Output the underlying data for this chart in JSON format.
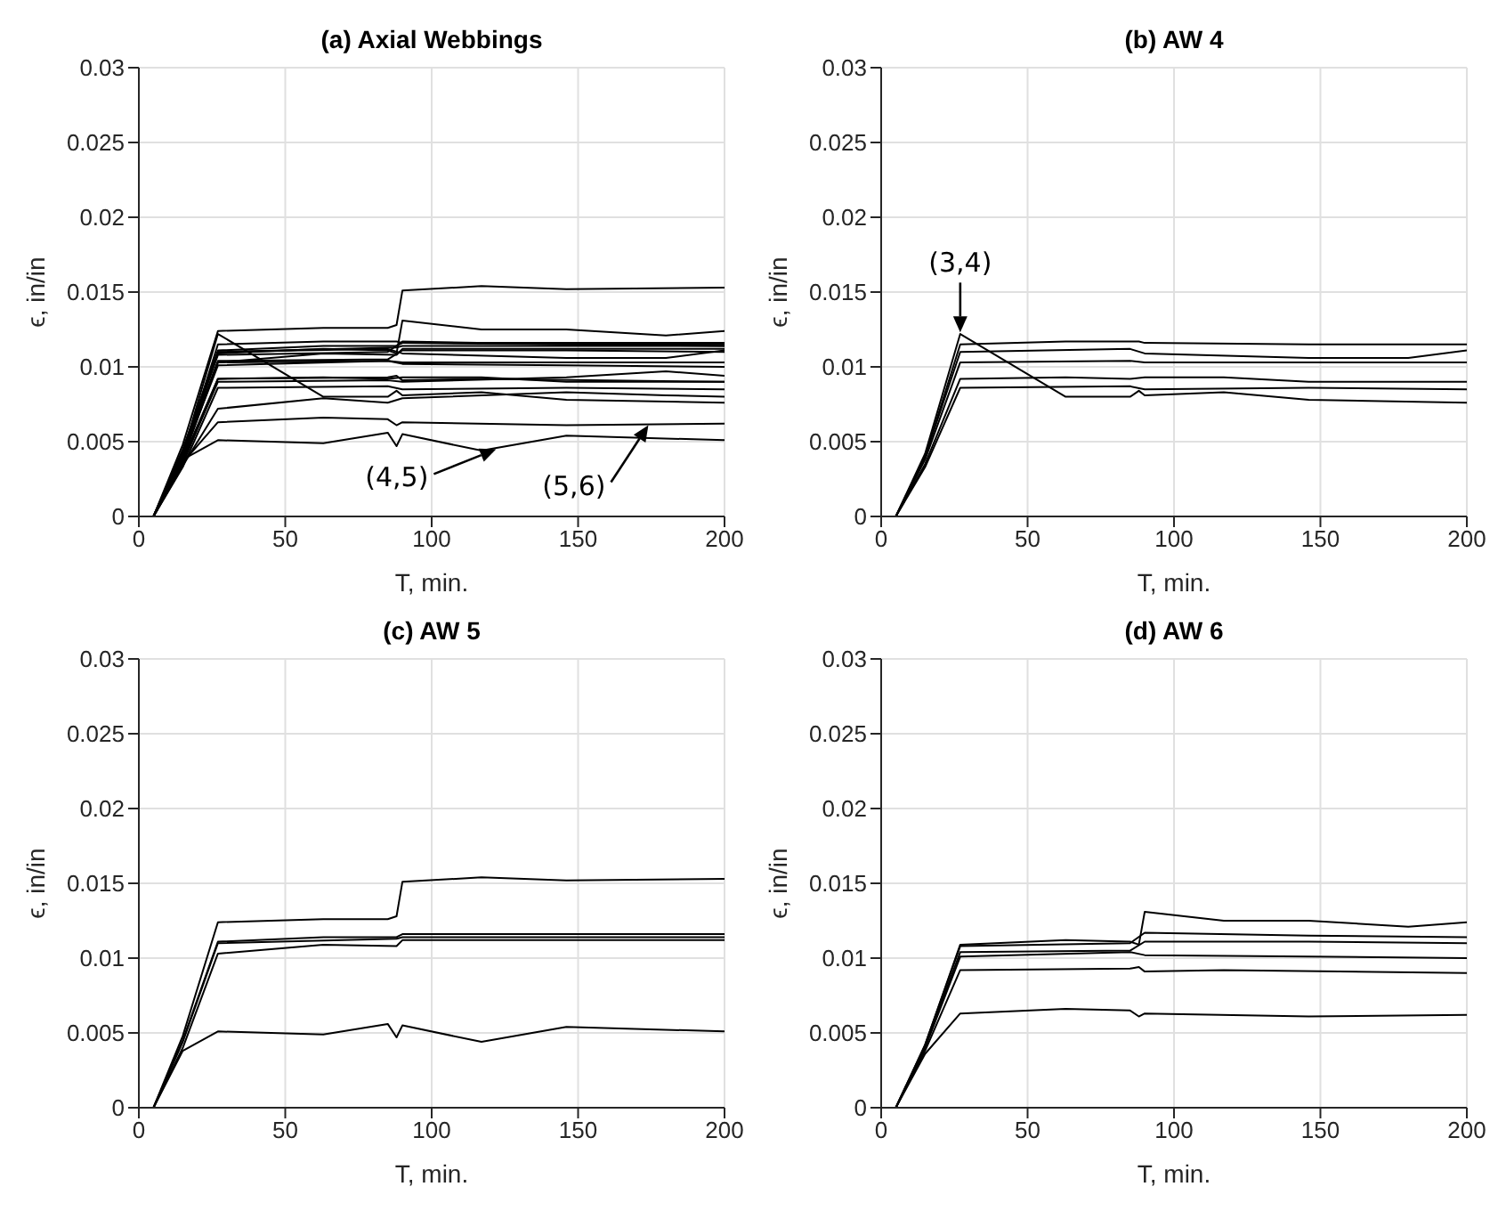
{
  "chart_data": [
    {
      "type": "line",
      "title": "(a) Axial Webbings",
      "xlabel": "T, min.",
      "ylabel": "ϵ, in/in",
      "xlim": [
        0,
        200
      ],
      "ylim": [
        0,
        0.03
      ],
      "xticks": [
        0,
        50,
        100,
        150,
        200
      ],
      "yticks": [
        0,
        0.005,
        0.01,
        0.015,
        0.02,
        0.025,
        0.03
      ],
      "grid": true,
      "annotations": [
        {
          "text": "(4,5)",
          "x": 122,
          "y": 0.0045
        },
        {
          "text": "(5,6)",
          "x": 174,
          "y": 0.0061
        }
      ],
      "series": [
        {
          "color": "#000000",
          "x": [
            5,
            15,
            27,
            63,
            88,
            90,
            146,
            200
          ],
          "values": [
            0,
            0.004,
            0.0115,
            0.0117,
            0.0117,
            0.0116,
            0.0115,
            0.0115
          ]
        },
        {
          "color": "#000000",
          "x": [
            5,
            15,
            27,
            85,
            90,
            146,
            180,
            200
          ],
          "values": [
            0,
            0.004,
            0.011,
            0.0112,
            0.0109,
            0.0106,
            0.0106,
            0.0111
          ]
        },
        {
          "color": "#000000",
          "x": [
            5,
            15,
            27,
            85,
            90,
            200
          ],
          "values": [
            0,
            0.0038,
            0.0103,
            0.0104,
            0.0103,
            0.0103
          ]
        },
        {
          "color": "#000000",
          "x": [
            5,
            15,
            27,
            63,
            85,
            88,
            90,
            117,
            146,
            200
          ],
          "values": [
            0,
            0.0042,
            0.0122,
            0.008,
            0.008,
            0.0084,
            0.0081,
            0.0083,
            0.0078,
            0.0076
          ]
        },
        {
          "color": "#000000",
          "x": [
            5,
            15,
            27,
            63,
            85,
            90,
            117,
            146,
            200
          ],
          "values": [
            0,
            0.0035,
            0.0092,
            0.0093,
            0.0092,
            0.0093,
            0.0093,
            0.009,
            0.009
          ]
        },
        {
          "color": "#000000",
          "x": [
            5,
            15,
            27,
            85,
            90,
            146,
            200
          ],
          "values": [
            0,
            0.0033,
            0.0086,
            0.0087,
            0.0085,
            0.0086,
            0.0085
          ]
        },
        {
          "color": "#000000",
          "x": [
            5,
            15,
            27,
            63,
            85,
            88,
            90,
            117,
            146,
            200
          ],
          "values": [
            0,
            0.0048,
            0.0124,
            0.0126,
            0.0126,
            0.0128,
            0.0151,
            0.0154,
            0.0152,
            0.0153
          ]
        },
        {
          "color": "#000000",
          "x": [
            5,
            15,
            27,
            63,
            88,
            90,
            200
          ],
          "values": [
            0,
            0.0045,
            0.0111,
            0.0114,
            0.0114,
            0.0116,
            0.0116
          ]
        },
        {
          "color": "#000000",
          "x": [
            5,
            15,
            27,
            88,
            90,
            200
          ],
          "values": [
            0,
            0.0044,
            0.011,
            0.0113,
            0.0114,
            0.0114
          ]
        },
        {
          "color": "#000000",
          "x": [
            5,
            15,
            27,
            63,
            88,
            90,
            200
          ],
          "values": [
            0,
            0.004,
            0.0103,
            0.0109,
            0.0108,
            0.0112,
            0.0112
          ]
        },
        {
          "color": "#000000",
          "x": [
            5,
            15,
            27,
            63,
            85,
            88,
            90,
            117,
            146,
            200
          ],
          "values": [
            0,
            0.0038,
            0.0051,
            0.0049,
            0.0056,
            0.0047,
            0.0055,
            0.0044,
            0.0054,
            0.0051
          ]
        },
        {
          "color": "#000000",
          "x": [
            5,
            15,
            27,
            63,
            85,
            88,
            90,
            117,
            146,
            180,
            200
          ],
          "values": [
            0,
            0.0042,
            0.0109,
            0.0112,
            0.0111,
            0.0109,
            0.0131,
            0.0125,
            0.0125,
            0.0121,
            0.0124
          ]
        },
        {
          "color": "#000000",
          "x": [
            5,
            15,
            27,
            85,
            90,
            146,
            200
          ],
          "values": [
            0,
            0.0042,
            0.0108,
            0.011,
            0.0117,
            0.0115,
            0.0114
          ]
        },
        {
          "color": "#000000",
          "x": [
            5,
            15,
            27,
            85,
            90,
            146,
            200
          ],
          "values": [
            0,
            0.0041,
            0.0104,
            0.0105,
            0.0111,
            0.0111,
            0.011
          ]
        },
        {
          "color": "#000000",
          "x": [
            5,
            15,
            27,
            85,
            90,
            146,
            200
          ],
          "values": [
            0,
            0.004,
            0.0101,
            0.0104,
            0.0102,
            0.0101,
            0.01
          ]
        },
        {
          "color": "#000000",
          "x": [
            5,
            15,
            27,
            85,
            88,
            90,
            117,
            200
          ],
          "values": [
            0,
            0.0038,
            0.0092,
            0.0093,
            0.0094,
            0.0091,
            0.0092,
            0.009
          ]
        },
        {
          "color": "#000000",
          "x": [
            5,
            15,
            27,
            63,
            85,
            88,
            90,
            146,
            200
          ],
          "values": [
            0,
            0.0036,
            0.0063,
            0.0066,
            0.0065,
            0.0061,
            0.0063,
            0.0061,
            0.0062
          ]
        },
        {
          "color": "#000000",
          "x": [
            5,
            15,
            27,
            63,
            85,
            90,
            146,
            180,
            200
          ],
          "values": [
            0,
            0.0034,
            0.0072,
            0.0079,
            0.0076,
            0.0079,
            0.0083,
            0.0081,
            0.008
          ]
        },
        {
          "color": "#000000",
          "x": [
            5,
            15,
            27,
            85,
            90,
            146,
            180,
            200
          ],
          "values": [
            0,
            0.0036,
            0.009,
            0.0091,
            0.009,
            0.0093,
            0.0097,
            0.0094
          ]
        }
      ]
    },
    {
      "type": "line",
      "title": "(b) AW 4",
      "xlabel": "T, min.",
      "ylabel": "ϵ, in/in",
      "xlim": [
        0,
        200
      ],
      "ylim": [
        0,
        0.03
      ],
      "xticks": [
        0,
        50,
        100,
        150,
        200
      ],
      "yticks": [
        0,
        0.005,
        0.01,
        0.015,
        0.02,
        0.025,
        0.03
      ],
      "grid": true,
      "annotations": [
        {
          "text": "(3,4)",
          "x": 27,
          "y": 0.0123
        }
      ],
      "series": [
        {
          "color": "#000000",
          "x": [
            5,
            15,
            27,
            63,
            88,
            90,
            146,
            200
          ],
          "values": [
            0,
            0.004,
            0.0115,
            0.0117,
            0.0117,
            0.0116,
            0.0115,
            0.0115
          ]
        },
        {
          "color": "#000000",
          "x": [
            5,
            15,
            27,
            85,
            90,
            146,
            180,
            200
          ],
          "values": [
            0,
            0.004,
            0.011,
            0.0112,
            0.0109,
            0.0106,
            0.0106,
            0.0111
          ]
        },
        {
          "color": "#000000",
          "x": [
            5,
            15,
            27,
            85,
            90,
            200
          ],
          "values": [
            0,
            0.0038,
            0.0103,
            0.0104,
            0.0103,
            0.0103
          ]
        },
        {
          "color": "#000000",
          "x": [
            5,
            15,
            27,
            63,
            85,
            88,
            90,
            117,
            146,
            200
          ],
          "values": [
            0,
            0.0042,
            0.0122,
            0.008,
            0.008,
            0.0084,
            0.0081,
            0.0083,
            0.0078,
            0.0076
          ]
        },
        {
          "color": "#000000",
          "x": [
            5,
            15,
            27,
            63,
            85,
            90,
            117,
            146,
            200
          ],
          "values": [
            0,
            0.0035,
            0.0092,
            0.0093,
            0.0092,
            0.0093,
            0.0093,
            0.009,
            0.009
          ]
        },
        {
          "color": "#000000",
          "x": [
            5,
            15,
            27,
            85,
            90,
            146,
            200
          ],
          "values": [
            0,
            0.0033,
            0.0086,
            0.0087,
            0.0085,
            0.0086,
            0.0085
          ]
        }
      ]
    },
    {
      "type": "line",
      "title": "(c) AW 5",
      "xlabel": "T, min.",
      "ylabel": "ϵ, in/in",
      "xlim": [
        0,
        200
      ],
      "ylim": [
        0,
        0.03
      ],
      "xticks": [
        0,
        50,
        100,
        150,
        200
      ],
      "yticks": [
        0,
        0.005,
        0.01,
        0.015,
        0.02,
        0.025,
        0.03
      ],
      "grid": true,
      "series": [
        {
          "color": "#000000",
          "x": [
            5,
            15,
            27,
            63,
            85,
            88,
            90,
            117,
            146,
            200
          ],
          "values": [
            0,
            0.0048,
            0.0124,
            0.0126,
            0.0126,
            0.0128,
            0.0151,
            0.0154,
            0.0152,
            0.0153
          ]
        },
        {
          "color": "#000000",
          "x": [
            5,
            15,
            27,
            63,
            88,
            90,
            200
          ],
          "values": [
            0,
            0.0045,
            0.0111,
            0.0114,
            0.0114,
            0.0116,
            0.0116
          ]
        },
        {
          "color": "#000000",
          "x": [
            5,
            15,
            27,
            88,
            90,
            200
          ],
          "values": [
            0,
            0.0044,
            0.011,
            0.0113,
            0.0114,
            0.0114
          ]
        },
        {
          "color": "#000000",
          "x": [
            5,
            15,
            27,
            63,
            88,
            90,
            200
          ],
          "values": [
            0,
            0.004,
            0.0103,
            0.0109,
            0.0108,
            0.0112,
            0.0112
          ]
        },
        {
          "color": "#000000",
          "x": [
            5,
            15,
            27,
            63,
            85,
            88,
            90,
            117,
            146,
            200
          ],
          "values": [
            0,
            0.0038,
            0.0051,
            0.0049,
            0.0056,
            0.0047,
            0.0055,
            0.0044,
            0.0054,
            0.0051
          ]
        }
      ]
    },
    {
      "type": "line",
      "title": "(d) AW 6",
      "xlabel": "T, min.",
      "ylabel": "ϵ, in/in",
      "xlim": [
        0,
        200
      ],
      "ylim": [
        0,
        0.03
      ],
      "xticks": [
        0,
        50,
        100,
        150,
        200
      ],
      "yticks": [
        0,
        0.005,
        0.01,
        0.015,
        0.02,
        0.025,
        0.03
      ],
      "grid": true,
      "series": [
        {
          "color": "#000000",
          "x": [
            5,
            15,
            27,
            63,
            85,
            88,
            90,
            117,
            146,
            180,
            200
          ],
          "values": [
            0,
            0.0042,
            0.0109,
            0.0112,
            0.0111,
            0.0109,
            0.0131,
            0.0125,
            0.0125,
            0.0121,
            0.0124
          ]
        },
        {
          "color": "#000000",
          "x": [
            5,
            15,
            27,
            85,
            90,
            146,
            200
          ],
          "values": [
            0,
            0.0042,
            0.0108,
            0.011,
            0.0117,
            0.0115,
            0.0114
          ]
        },
        {
          "color": "#000000",
          "x": [
            5,
            15,
            27,
            85,
            90,
            146,
            200
          ],
          "values": [
            0,
            0.0041,
            0.0104,
            0.0105,
            0.0111,
            0.0111,
            0.011
          ]
        },
        {
          "color": "#000000",
          "x": [
            5,
            15,
            27,
            85,
            90,
            146,
            200
          ],
          "values": [
            0,
            0.004,
            0.0101,
            0.0104,
            0.0102,
            0.0101,
            0.01
          ]
        },
        {
          "color": "#000000",
          "x": [
            5,
            15,
            27,
            85,
            88,
            90,
            117,
            200
          ],
          "values": [
            0,
            0.0038,
            0.0092,
            0.0093,
            0.0094,
            0.0091,
            0.0092,
            0.009
          ]
        },
        {
          "color": "#000000",
          "x": [
            5,
            15,
            27,
            63,
            85,
            88,
            90,
            146,
            200
          ],
          "values": [
            0,
            0.0036,
            0.0063,
            0.0066,
            0.0065,
            0.0061,
            0.0063,
            0.0061,
            0.0062
          ]
        }
      ]
    }
  ]
}
